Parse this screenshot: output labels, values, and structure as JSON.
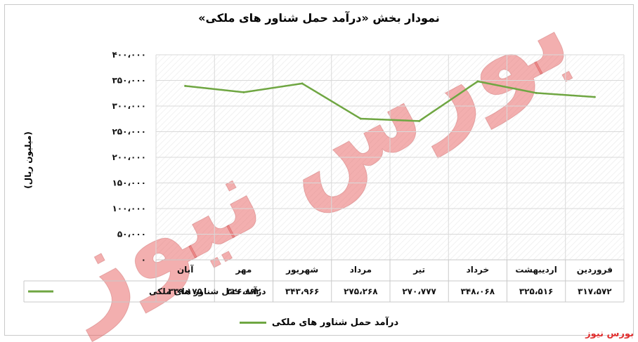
{
  "colors": {
    "series": "#6fa642",
    "grid": "#d9d9d9",
    "source": "#e03030"
  },
  "chart_data": {
    "type": "line",
    "title": "نمودار بخش «درآمد حمل شناور های ملکی»",
    "ylabel": "(میلیون ریال)",
    "xlabel": "",
    "ylim": [
      0,
      400000
    ],
    "yticks": [
      0,
      50000,
      100000,
      150000,
      200000,
      250000,
      300000,
      350000,
      400000
    ],
    "ytick_labels": [
      "۰",
      "۵۰،۰۰۰",
      "۱۰۰،۰۰۰",
      "۱۵۰،۰۰۰",
      "۲۰۰،۰۰۰",
      "۲۵۰،۰۰۰",
      "۳۰۰،۰۰۰",
      "۳۵۰،۰۰۰",
      "۴۰۰،۰۰۰"
    ],
    "categories": [
      "فروردین",
      "اردیبهشت",
      "خرداد",
      "تیر",
      "مرداد",
      "شهریور",
      "مهر",
      "آبان"
    ],
    "series": [
      {
        "name": "درآمد حمل شناور های ملکی",
        "values": [
          317572,
          325516,
          348068,
          270777,
          275268,
          343966,
          326892,
          339175
        ],
        "value_labels": [
          "۳۱۷،۵۷۲",
          "۳۲۵،۵۱۶",
          "۳۴۸،۰۶۸",
          "۲۷۰،۷۷۷",
          "۲۷۵،۲۶۸",
          "۳۴۳،۹۶۶",
          "۳۲۶،۸۹۲",
          "۳۳۹،۱۷۵"
        ]
      }
    ],
    "grid": true,
    "legend": "bottom",
    "data_table": true
  },
  "watermark": "بورس نیوز",
  "source": "بورس نیوز"
}
